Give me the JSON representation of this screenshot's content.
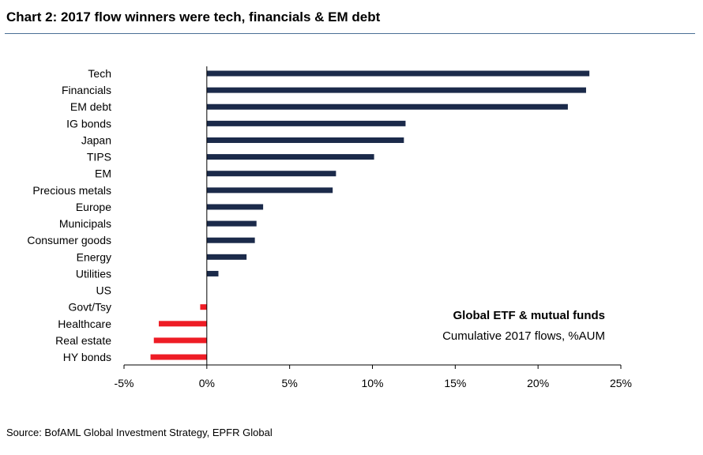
{
  "header": {
    "title": "Chart 2: 2017 flow winners were tech, financials & EM debt"
  },
  "footer": {
    "source": "Source: BofAML Global Investment Strategy, EPFR Global"
  },
  "chart_data": {
    "type": "bar",
    "orientation": "horizontal",
    "categories": [
      "Tech",
      "Financials",
      "EM debt",
      "IG bonds",
      "Japan",
      "TIPS",
      "EM",
      "Precious metals",
      "Europe",
      "Municipals",
      "Consumer goods",
      "Energy",
      "Utilities",
      "US",
      "Govt/Tsy",
      "Healthcare",
      "Real estate",
      "HY bonds"
    ],
    "values": [
      23.1,
      22.9,
      21.8,
      12.0,
      11.9,
      10.1,
      7.8,
      7.6,
      3.4,
      3.0,
      2.9,
      2.4,
      0.7,
      0.0,
      -0.4,
      -2.9,
      -3.2,
      -3.4
    ],
    "xlim": [
      -5,
      25
    ],
    "ticks": [
      -5,
      0,
      5,
      10,
      15,
      20,
      25
    ],
    "tick_labels": [
      "-5%",
      "0%",
      "5%",
      "10%",
      "15%",
      "20%",
      "25%"
    ],
    "colors": {
      "positive": "#1b2a4a",
      "negative": "#ee1c25"
    },
    "annotation": {
      "title": "Global ETF & mutual funds",
      "subtitle": "Cumulative 2017 flows, %AUM"
    },
    "grid": false
  }
}
